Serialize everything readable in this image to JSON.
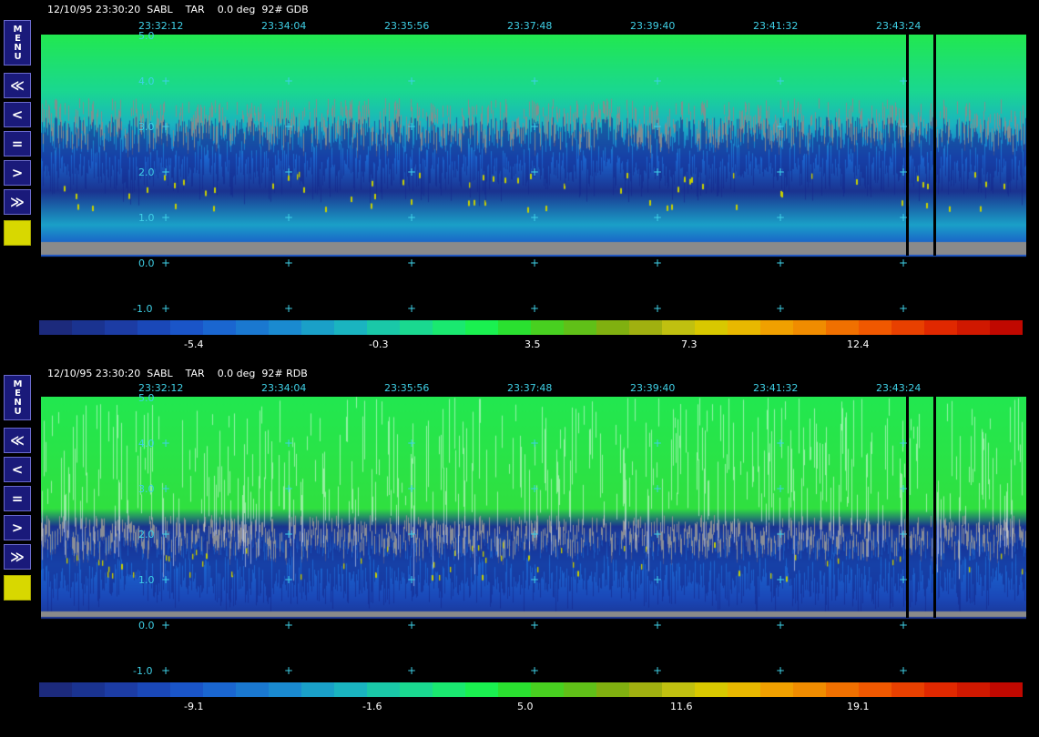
{
  "panels": [
    {
      "id": "gdb",
      "header": "12/10/95 23:30:20  SABL    TAR    0.0 deg  92# GDB",
      "time_labels": [
        "23:32:12",
        "23:34:04",
        "23:35:56",
        "23:37:48",
        "23:39:40",
        "23:41:32",
        "23:43:24"
      ],
      "y_labels": [
        "5.0",
        "4.0",
        "3.0",
        "2.0",
        "1.0",
        "0.0",
        "-1.0"
      ],
      "colorbar_ticks": [
        "-5.4",
        "-0.3",
        "3.5",
        "7.3",
        "12.4"
      ],
      "menu_label": "MENU",
      "buttons": [
        "≪",
        "<",
        "=",
        ">",
        "≫"
      ]
    },
    {
      "id": "rdb",
      "header": "12/10/95 23:30:20  SABL    TAR    0.0 deg  92# RDB",
      "time_labels": [
        "23:32:12",
        "23:34:04",
        "23:35:56",
        "23:37:48",
        "23:39:40",
        "23:41:32",
        "23:43:24"
      ],
      "y_labels": [
        "5.0",
        "4.0",
        "3.0",
        "2.0",
        "1.0",
        "0.0",
        "-1.0"
      ],
      "colorbar_ticks": [
        "-9.1",
        "-1.6",
        "5.0",
        "11.6",
        "19.1"
      ],
      "menu_label": "MENU",
      "buttons": [
        "≪",
        "<",
        "=",
        ">",
        "≫"
      ]
    }
  ],
  "colors": {
    "accent_label": "#3fd0e6",
    "button_bg": "#1a1a7a",
    "button_yellow": "#d8d800",
    "colormap": [
      "#1c2a7c",
      "#1a3390",
      "#1c3ca4",
      "#1a48b8",
      "#1a55c8",
      "#1a66d0",
      "#1a78d0",
      "#1a8ad0",
      "#1aa0c8",
      "#1ab4c0",
      "#1ac8a8",
      "#1ad890",
      "#1ae870",
      "#1af050",
      "#2ae030",
      "#48d020",
      "#60c018",
      "#80b010",
      "#a0b010",
      "#c0c010",
      "#d8c800",
      "#e8b800",
      "#f0a000",
      "#f08c00",
      "#f07000",
      "#f05800",
      "#e84000",
      "#e02800",
      "#d01800",
      "#c00800"
    ]
  }
}
